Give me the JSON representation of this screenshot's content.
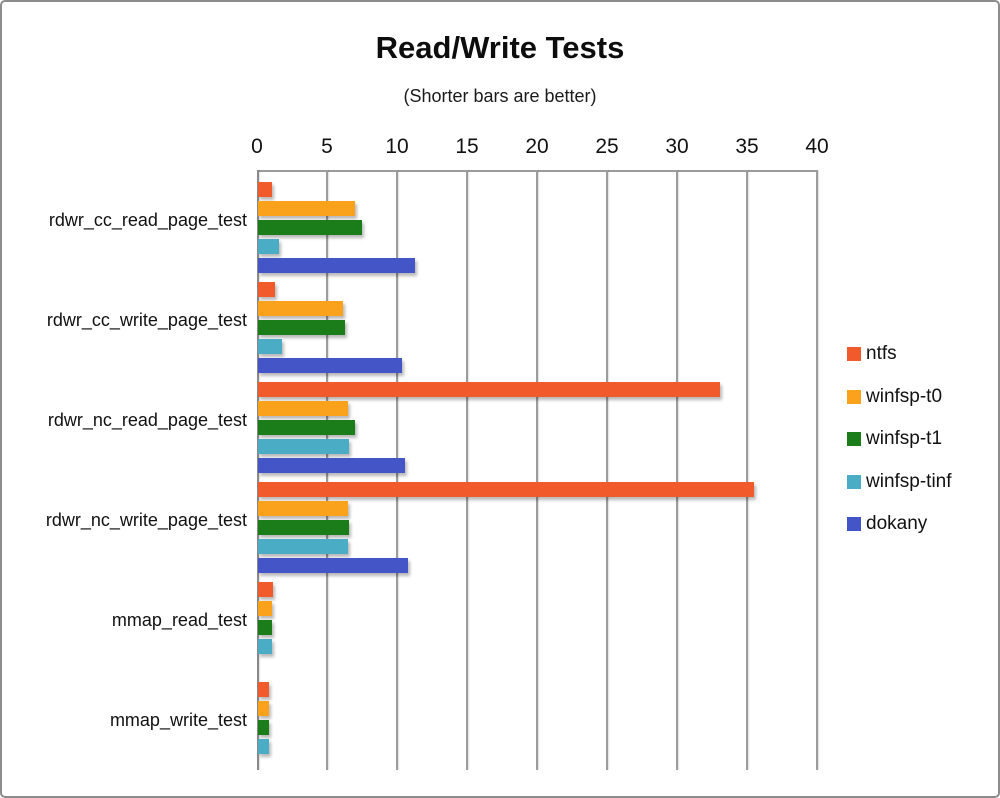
{
  "title": "Read/Write Tests",
  "subtitle": "(Shorter bars are better)",
  "chart_data": {
    "type": "bar",
    "orientation": "horizontal",
    "title": "Read/Write Tests",
    "subtitle": "(Shorter bars are better)",
    "categories": [
      "rdwr_cc_read_page_test",
      "rdwr_cc_write_page_test",
      "rdwr_nc_read_page_test",
      "rdwr_nc_write_page_test",
      "mmap_read_test",
      "mmap_write_test"
    ],
    "series": [
      {
        "name": "ntfs",
        "color": "#F15B2B",
        "values": [
          1.0,
          1.2,
          33.0,
          35.4,
          1.1,
          0.8
        ]
      },
      {
        "name": "winfsp-t0",
        "color": "#FAA21B",
        "values": [
          6.9,
          6.1,
          6.4,
          6.4,
          1.0,
          0.8
        ]
      },
      {
        "name": "winfsp-t1",
        "color": "#1A7D1A",
        "values": [
          7.4,
          6.2,
          6.9,
          6.5,
          1.0,
          0.8
        ]
      },
      {
        "name": "winfsp-tinf",
        "color": "#4BACC6",
        "values": [
          1.5,
          1.7,
          6.5,
          6.4,
          1.0,
          0.8
        ]
      },
      {
        "name": "dokany",
        "color": "#4456C7",
        "values": [
          11.2,
          10.3,
          10.5,
          10.7,
          null,
          null
        ]
      }
    ],
    "xlim": [
      0,
      40
    ],
    "xticks": [
      0,
      5,
      10,
      15,
      20,
      25,
      30,
      35,
      40
    ],
    "grid": true,
    "gridline_color": "#9c9c9c",
    "legend_position": "right",
    "frame_border_color": "#8c8c8c"
  }
}
